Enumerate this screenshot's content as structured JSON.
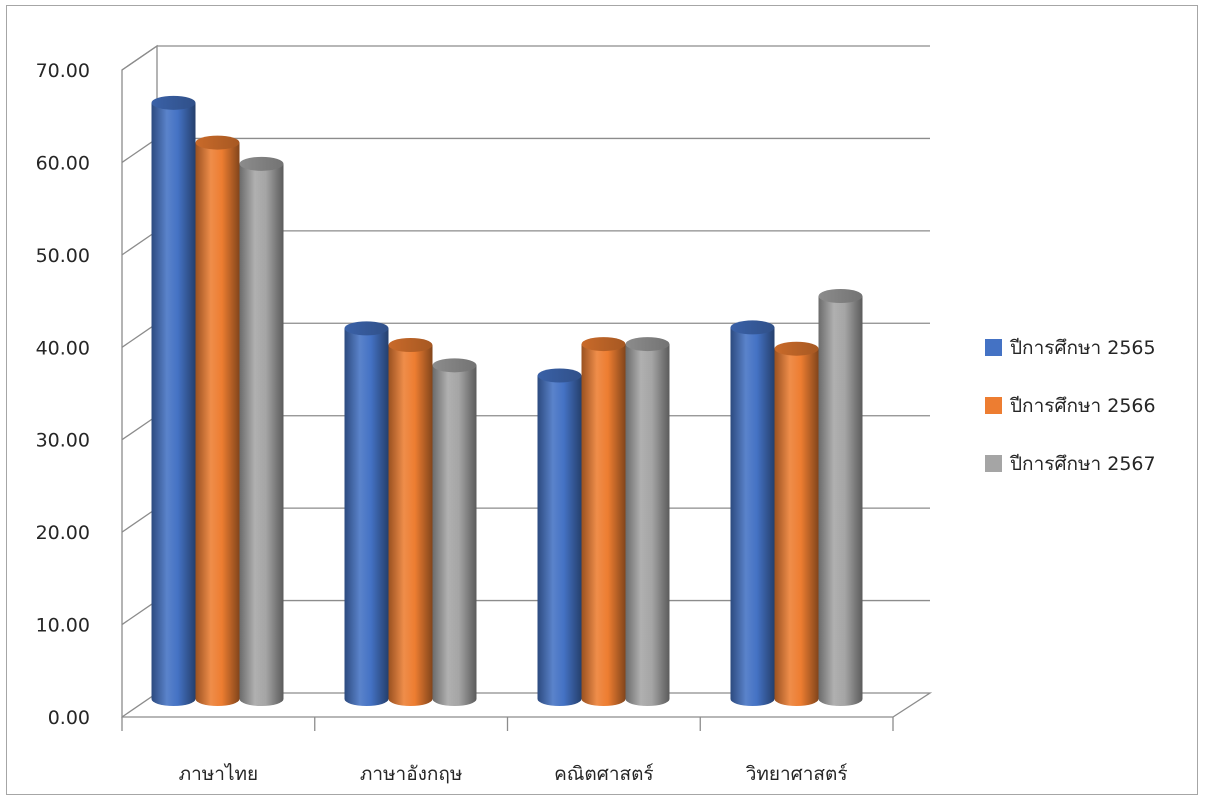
{
  "chart_data": {
    "type": "bar",
    "title": "",
    "xlabel": "",
    "ylabel": "",
    "categories": [
      "ภาษาไทย",
      "ภาษาอังกฤษ",
      "คณิตศาสตร์",
      "วิทยาศาสตร์"
    ],
    "series": [
      {
        "name": "ปีการศึกษา 2565",
        "color": "#4472C4",
        "values": [
          64.5,
          40.1,
          35.0,
          40.2
        ]
      },
      {
        "name": "ปีการศึกษา 2566",
        "color": "#ED7D31",
        "values": [
          60.2,
          38.3,
          38.4,
          37.9
        ]
      },
      {
        "name": "ปีการศึกษา 2567",
        "color": "#A5A5A5",
        "values": [
          57.9,
          36.1,
          38.4,
          43.6
        ]
      }
    ],
    "ylim": [
      0,
      70
    ],
    "ytick_labels": [
      "0.00",
      "10.00",
      "20.00",
      "30.00",
      "40.00",
      "50.00",
      "60.00",
      "70.00"
    ],
    "grid": true,
    "style": "3d-cylinder",
    "legend_position": "right"
  }
}
